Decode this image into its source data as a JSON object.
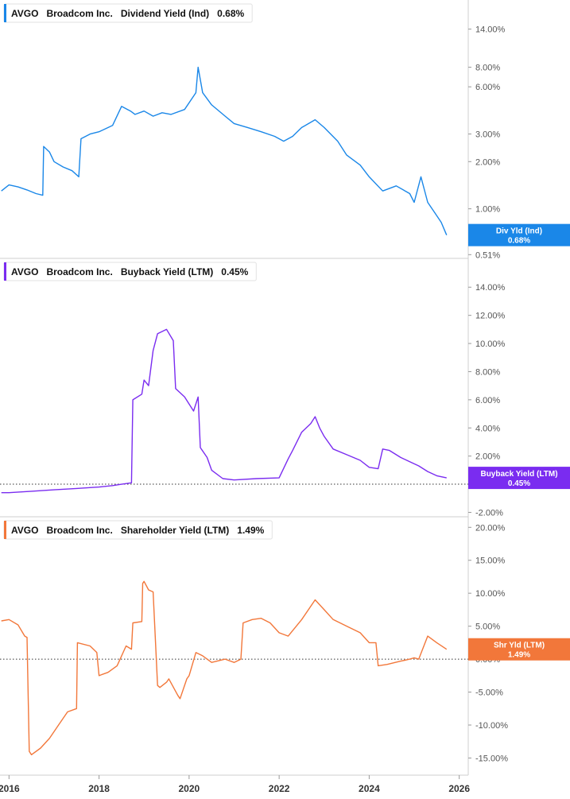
{
  "x_axis": {
    "labels": [
      "2016",
      "2018",
      "2020",
      "2022",
      "2024",
      "2026"
    ],
    "range": [
      2015.8,
      2026.2
    ]
  },
  "chart_data": [
    {
      "type": "line",
      "title_parts": [
        "AVGO",
        "Broadcom Inc.",
        "Dividend Yield (Ind)",
        "0.68%"
      ],
      "color": "#1a87e8",
      "scale": "log",
      "ylim": [
        0.5,
        17
      ],
      "y_ticks": [
        0.51,
        1.0,
        2.0,
        3.0,
        6.0,
        8.0,
        14.0
      ],
      "y_tick_labels": [
        "0.51%",
        "1.00%",
        "2.00%",
        "3.00%",
        "6.00%",
        "8.00%",
        "14.00%"
      ],
      "badge": {
        "line1": "Div Yld (Ind)",
        "line2": "0.68%",
        "value": 0.68
      },
      "series": [
        {
          "x": [
            2015.83,
            2016.0,
            2016.2,
            2016.4,
            2016.6,
            2016.75,
            2016.77,
            2016.9,
            2017.0,
            2017.2,
            2017.4,
            2017.55,
            2017.6,
            2017.8,
            2018.0,
            2018.3,
            2018.5,
            2018.7,
            2018.8,
            2019.0,
            2019.2,
            2019.4,
            2019.6,
            2019.9,
            2020.15,
            2020.2,
            2020.3,
            2020.5,
            2020.8,
            2021.0,
            2021.3,
            2021.6,
            2021.9,
            2022.1,
            2022.3,
            2022.5,
            2022.8,
            2023.0,
            2023.3,
            2023.5,
            2023.8,
            2024.0,
            2024.3,
            2024.6,
            2024.9,
            2025.0,
            2025.15,
            2025.3,
            2025.45,
            2025.6,
            2025.72
          ],
          "y": [
            1.3,
            1.42,
            1.38,
            1.32,
            1.25,
            1.22,
            2.5,
            2.3,
            2.0,
            1.85,
            1.75,
            1.6,
            2.8,
            3.0,
            3.1,
            3.4,
            4.5,
            4.2,
            4.0,
            4.2,
            3.9,
            4.1,
            4.0,
            4.3,
            5.5,
            8.0,
            5.5,
            4.6,
            3.9,
            3.5,
            3.3,
            3.1,
            2.9,
            2.7,
            2.9,
            3.3,
            3.7,
            3.3,
            2.7,
            2.2,
            1.9,
            1.6,
            1.3,
            1.4,
            1.25,
            1.1,
            1.6,
            1.1,
            0.95,
            0.82,
            0.68
          ]
        }
      ]
    },
    {
      "type": "line",
      "title_parts": [
        "AVGO",
        "Broadcom Inc.",
        "Buyback Yield (LTM)",
        "0.45%"
      ],
      "color": "#7a2cf0",
      "scale": "linear",
      "ylim": [
        -2.2,
        15.2
      ],
      "y_ticks": [
        -2,
        0,
        2,
        4,
        6,
        8,
        10,
        12,
        14
      ],
      "y_tick_labels": [
        "-2.00%",
        "0.00%",
        "2.00%",
        "4.00%",
        "6.00%",
        "8.00%",
        "10.00%",
        "12.00%",
        "14.00%"
      ],
      "badge": {
        "line1": "Buyback Yield (LTM)",
        "line2": "0.45%",
        "value": 0.45
      },
      "series": [
        {
          "x": [
            2015.83,
            2016.0,
            2016.5,
            2017.0,
            2017.5,
            2018.0,
            2018.3,
            2018.5,
            2018.72,
            2018.75,
            2018.95,
            2019.0,
            2019.1,
            2019.2,
            2019.3,
            2019.5,
            2019.65,
            2019.7,
            2019.9,
            2020.1,
            2020.2,
            2020.25,
            2020.4,
            2020.5,
            2020.75,
            2021.0,
            2021.5,
            2022.0,
            2022.2,
            2022.3,
            2022.5,
            2022.7,
            2022.8,
            2022.9,
            2023.0,
            2023.2,
            2023.5,
            2023.8,
            2024.0,
            2024.2,
            2024.3,
            2024.45,
            2024.7,
            2024.9,
            2025.1,
            2025.3,
            2025.5,
            2025.72
          ],
          "y": [
            -0.6,
            -0.6,
            -0.5,
            -0.4,
            -0.3,
            -0.2,
            -0.1,
            0.0,
            0.1,
            6.0,
            6.4,
            7.4,
            7.0,
            9.5,
            10.7,
            11.0,
            10.2,
            6.8,
            6.2,
            5.2,
            6.2,
            2.6,
            1.9,
            1.0,
            0.4,
            0.3,
            0.4,
            0.45,
            1.8,
            2.4,
            3.7,
            4.3,
            4.8,
            4.0,
            3.4,
            2.5,
            2.1,
            1.7,
            1.2,
            1.1,
            2.5,
            2.4,
            1.9,
            1.6,
            1.3,
            0.9,
            0.6,
            0.45
          ]
        }
      ]
    },
    {
      "type": "line",
      "title_parts": [
        "AVGO",
        "Broadcom Inc.",
        "Shareholder Yield (LTM)",
        "1.49%"
      ],
      "color": "#f2773a",
      "scale": "linear",
      "ylim": [
        -17,
        21
      ],
      "y_ticks": [
        -15,
        -10,
        -5,
        0,
        5,
        10,
        15,
        20
      ],
      "y_tick_labels": [
        "-15.00%",
        "-10.00%",
        "-5.00%",
        "0.00%",
        "5.00%",
        "10.00%",
        "15.00%",
        "20.00%"
      ],
      "badge": {
        "line1": "Shr Yld (LTM)",
        "line2": "1.49%",
        "value": 1.49
      },
      "series": [
        {
          "x": [
            2015.83,
            2016.0,
            2016.2,
            2016.35,
            2016.4,
            2016.45,
            2016.5,
            2016.7,
            2016.9,
            2017.1,
            2017.3,
            2017.5,
            2017.52,
            2017.8,
            2017.95,
            2018.0,
            2018.2,
            2018.4,
            2018.6,
            2018.72,
            2018.75,
            2018.95,
            2018.97,
            2019.0,
            2019.1,
            2019.2,
            2019.3,
            2019.35,
            2019.5,
            2019.55,
            2019.75,
            2019.8,
            2019.95,
            2020.0,
            2020.15,
            2020.3,
            2020.5,
            2020.8,
            2021.0,
            2021.15,
            2021.2,
            2021.4,
            2021.6,
            2021.8,
            2022.0,
            2022.2,
            2022.5,
            2022.8,
            2023.0,
            2023.2,
            2023.5,
            2023.8,
            2024.0,
            2024.15,
            2024.2,
            2024.4,
            2024.7,
            2024.9,
            2025.0,
            2025.1,
            2025.3,
            2025.5,
            2025.72
          ],
          "y": [
            5.8,
            6.0,
            5.2,
            3.5,
            3.3,
            -14.0,
            -14.5,
            -13.5,
            -12.0,
            -10.0,
            -8.0,
            -7.5,
            2.5,
            2.0,
            1.0,
            -2.5,
            -2.0,
            -1.0,
            2.0,
            1.5,
            5.5,
            5.7,
            11.5,
            11.8,
            10.5,
            10.2,
            -4.0,
            -4.3,
            -3.5,
            -3.0,
            -5.5,
            -6.0,
            -3.0,
            -2.5,
            1.0,
            0.5,
            -0.5,
            0.0,
            -0.5,
            0.0,
            5.5,
            6.0,
            6.2,
            5.5,
            4.0,
            3.5,
            6.0,
            9.0,
            7.5,
            6.0,
            5.0,
            4.0,
            2.5,
            2.5,
            -1.0,
            -0.8,
            -0.3,
            0.0,
            0.2,
            0.0,
            3.5,
            2.5,
            1.49
          ]
        }
      ]
    }
  ]
}
